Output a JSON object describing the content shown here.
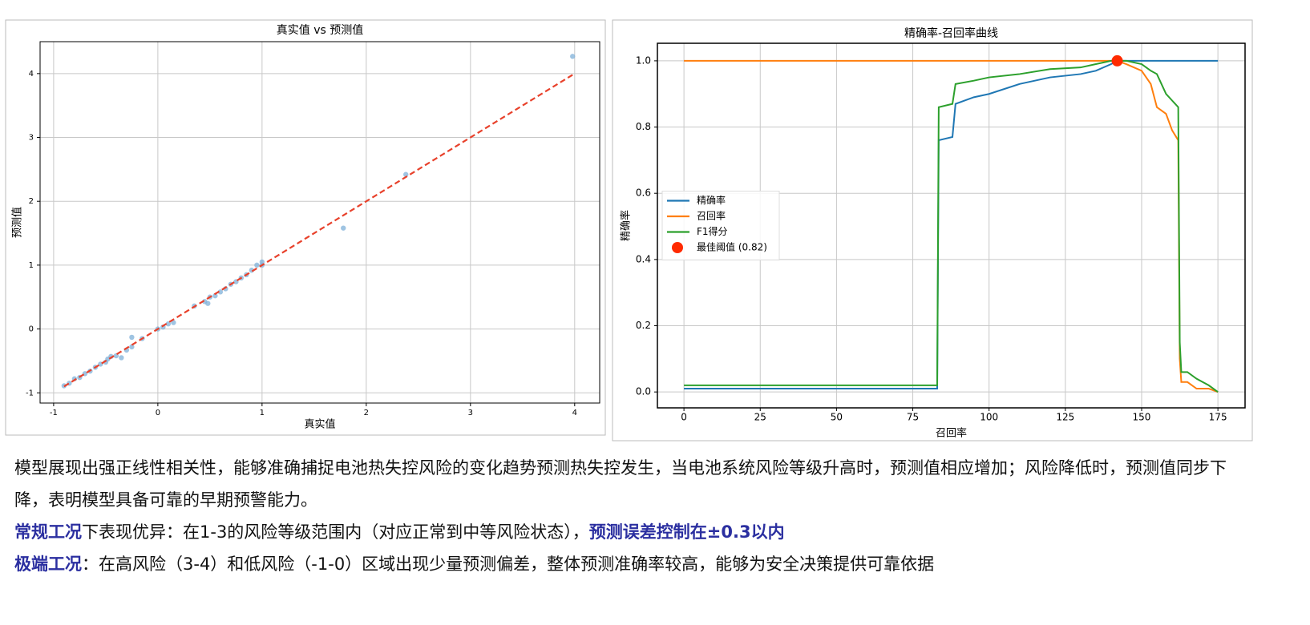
{
  "chart_data": [
    {
      "type": "scatter",
      "title": "真实值 vs 预测值",
      "xlabel": "真实值",
      "ylabel": "预测值",
      "xlim": [
        -1.13,
        4.24
      ],
      "ylim": [
        -1.16,
        4.5
      ],
      "xticks": [
        -1,
        0,
        1,
        2,
        3,
        4
      ],
      "yticks": [
        -1,
        0,
        1,
        2,
        3,
        4
      ],
      "grid": true,
      "series": [
        {
          "color": "#7fb0d8",
          "x": [
            -0.9,
            -0.85,
            -0.8,
            -0.75,
            -0.7,
            -0.65,
            -0.6,
            -0.55,
            -0.5,
            -0.48,
            -0.45,
            -0.4,
            -0.35,
            -0.3,
            -0.25,
            -0.25,
            -0.15,
            0,
            0.05,
            0.1,
            0.15,
            0.35,
            0.45,
            0.48,
            0.5,
            0.55,
            0.6,
            0.65,
            0.7,
            0.75,
            0.8,
            0.85,
            0.9,
            0.95,
            1.0,
            1.0,
            1.78,
            2.38,
            3.98
          ],
          "values": [
            -0.89,
            -0.85,
            -0.78,
            -0.76,
            -0.7,
            -0.66,
            -0.6,
            -0.55,
            -0.52,
            -0.47,
            -0.43,
            -0.42,
            -0.45,
            -0.33,
            -0.28,
            -0.13,
            -0.15,
            0,
            0.03,
            0.08,
            0.1,
            0.36,
            0.43,
            0.4,
            0.5,
            0.52,
            0.58,
            0.63,
            0.7,
            0.74,
            0.8,
            0.85,
            0.92,
            1.0,
            1.05,
            1.0,
            1.58,
            2.42,
            4.27
          ]
        }
      ],
      "reference_line": {
        "x": [
          -0.9,
          4.0
        ],
        "values": [
          -0.9,
          4.0
        ],
        "color": "#e8412b",
        "style": "dashed"
      }
    },
    {
      "type": "line",
      "title": "精确率-召回率曲线",
      "xlabel": "召回率",
      "ylabel": "精确率",
      "xlim": [
        -8.7,
        183.9
      ],
      "ylim": [
        -0.048,
        1.053
      ],
      "xticks": [
        0,
        25,
        50,
        75,
        100,
        125,
        150,
        175
      ],
      "yticks": [
        {
          "value": 0,
          "label": "0.0"
        },
        0.2,
        0.4,
        0.6,
        0.8,
        {
          "value": 1,
          "label": "1.0"
        }
      ],
      "grid": true,
      "legend": "center left",
      "x": [
        0,
        83,
        83.5,
        88,
        89,
        95,
        100,
        110,
        120,
        130,
        135,
        140,
        142,
        145,
        150,
        153,
        155,
        158,
        160,
        162,
        162.5,
        163,
        165,
        168,
        172,
        175
      ],
      "series": [
        {
          "name": "精确率",
          "color": "#1f77b4",
          "values": [
            0.01,
            0.01,
            0.76,
            0.77,
            0.87,
            0.89,
            0.9,
            0.93,
            0.95,
            0.96,
            0.97,
            0.99,
            1.0,
            1.0,
            1.0,
            1.0,
            1.0,
            1.0,
            1.0,
            1.0,
            1.0,
            1.0,
            1.0,
            1.0,
            1.0,
            1.0
          ]
        },
        {
          "name": "召回率",
          "color": "#ff7f0e",
          "values": [
            1.0,
            1.0,
            1.0,
            1.0,
            1.0,
            1.0,
            1.0,
            1.0,
            1.0,
            1.0,
            1.0,
            1.0,
            1.0,
            0.99,
            0.97,
            0.93,
            0.86,
            0.84,
            0.79,
            0.76,
            0.1,
            0.03,
            0.03,
            0.01,
            0.01,
            0.0
          ]
        },
        {
          "name": "F1得分",
          "color": "#2ca02c",
          "values": [
            0.02,
            0.02,
            0.86,
            0.87,
            0.93,
            0.94,
            0.95,
            0.96,
            0.975,
            0.98,
            0.99,
            1.0,
            1.0,
            1.0,
            0.99,
            0.97,
            0.96,
            0.9,
            0.88,
            0.86,
            0.15,
            0.06,
            0.06,
            0.04,
            0.02,
            0.0
          ]
        }
      ],
      "best_point": {
        "name": "最佳阈值 (0.82)",
        "color": "#ff2a00",
        "x": 142,
        "value": 1.0
      }
    }
  ],
  "text": {
    "paragraphs": [
      {
        "runs": [
          {
            "text": "模型展现出强正线性相关性，能够准确捕捉电池热失控风险的变化趋势预测热失控发生，当电池系统风险等级升高时，预测值相应增加；风险降低时，预测值同步下降，表明模型具备可靠的早期预警能力。"
          }
        ]
      },
      {
        "runs": [
          {
            "text": "常规工况",
            "style": "highlight"
          },
          {
            "text": "下表现优异：在1-3的风险等级范围内（对应正常到中等风险状态），"
          },
          {
            "text": "预测误差控制在±0.3以内",
            "style": "highlight"
          }
        ]
      },
      {
        "runs": [
          {
            "text": "极端工况",
            "style": "highlight"
          },
          {
            "text": "：在高风险（3-4）和低风险（-1-0）区域出现少量预测偏差，整体预测准确率较高，能够为安全决策提供可靠依据"
          }
        ]
      }
    ]
  }
}
